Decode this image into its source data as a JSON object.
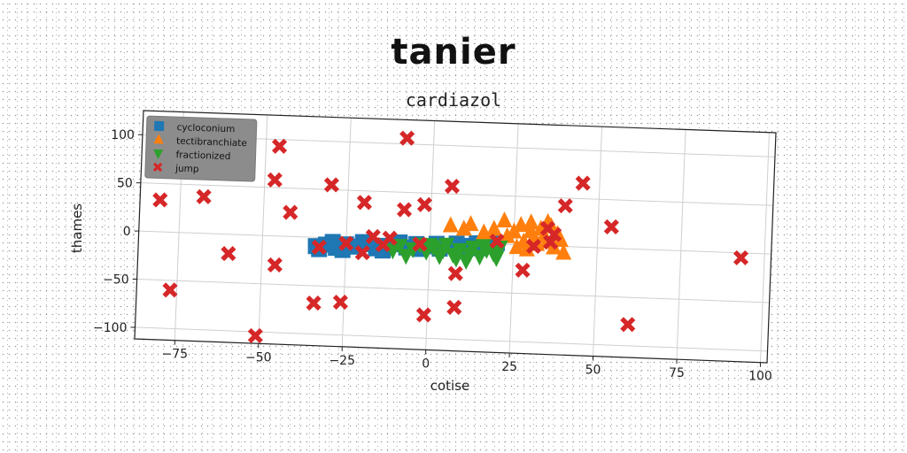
{
  "chart_data": {
    "type": "scatter",
    "title": "tanier",
    "subtitle": "cardiazol",
    "xlabel": "cotise",
    "ylabel": "thames",
    "xlim": [
      -87,
      102
    ],
    "ylim": [
      -112,
      125
    ],
    "xticks": [
      -75,
      -50,
      -25,
      0,
      25,
      50,
      75,
      100
    ],
    "yticks": [
      -100,
      -50,
      0,
      50,
      100
    ],
    "grid": true,
    "legend_position": "upper-left",
    "series": [
      {
        "name": "cycloconium",
        "marker": "square",
        "color": "#1f77b4",
        "points": [
          [
            -34,
            -9
          ],
          [
            -31,
            -7
          ],
          [
            -28,
            -10
          ],
          [
            -25,
            -6
          ],
          [
            -22,
            -8
          ],
          [
            -19,
            -5
          ],
          [
            -16,
            -9
          ],
          [
            -13,
            -6
          ],
          [
            -10,
            -4
          ],
          [
            -7,
            -7
          ],
          [
            -4,
            -3
          ],
          [
            -1,
            -5
          ],
          [
            2,
            -2
          ],
          [
            5,
            -4
          ],
          [
            8,
            -1
          ],
          [
            11,
            -3
          ],
          [
            14,
            0
          ],
          [
            17,
            -2
          ],
          [
            20,
            1
          ],
          [
            -33,
            -12
          ],
          [
            -29,
            -4
          ],
          [
            -26,
            -12
          ],
          [
            -20,
            -3
          ],
          [
            -14,
            -11
          ],
          [
            -9,
            -2
          ],
          [
            -3,
            -8
          ],
          [
            3,
            -7
          ],
          [
            9,
            -6
          ],
          [
            15,
            -5
          ]
        ]
      },
      {
        "name": "tectibranchiate",
        "marker": "triangle-up",
        "color": "#ff7f0e",
        "points": [
          [
            6,
            17
          ],
          [
            10,
            14
          ],
          [
            12,
            19
          ],
          [
            16,
            11
          ],
          [
            19,
            15
          ],
          [
            22,
            24
          ],
          [
            23,
            8
          ],
          [
            25,
            13
          ],
          [
            27,
            20
          ],
          [
            28,
            3
          ],
          [
            29,
            -5
          ],
          [
            30,
            14
          ],
          [
            31,
            8
          ],
          [
            32,
            1
          ],
          [
            33,
            17
          ],
          [
            34,
            10
          ],
          [
            35,
            4
          ],
          [
            36,
            20
          ],
          [
            37,
            -2
          ],
          [
            38,
            12
          ],
          [
            39,
            6
          ],
          [
            40,
            -7
          ],
          [
            26,
            -3
          ],
          [
            30,
            23
          ],
          [
            35,
            24
          ]
        ]
      },
      {
        "name": "fractionized",
        "marker": "triangle-down",
        "color": "#2ca02c",
        "points": [
          [
            -7,
            -15
          ],
          [
            -5,
            -8
          ],
          [
            -3,
            -3
          ],
          [
            -1,
            -10
          ],
          [
            1,
            -5
          ],
          [
            3,
            -14
          ],
          [
            5,
            -2
          ],
          [
            7,
            -12
          ],
          [
            9,
            -7
          ],
          [
            11,
            -18
          ],
          [
            13,
            -4
          ],
          [
            15,
            -13
          ],
          [
            17,
            -6
          ],
          [
            19,
            -9
          ],
          [
            21,
            -3
          ],
          [
            -9,
            -5
          ],
          [
            -11,
            -10
          ],
          [
            0,
            -3
          ],
          [
            4,
            -8
          ],
          [
            8,
            -16
          ],
          [
            12,
            -11
          ],
          [
            16,
            -2
          ],
          [
            20,
            -14
          ]
        ]
      },
      {
        "name": "jump",
        "marker": "x",
        "color": "#d62728",
        "points": [
          [
            -8,
            106
          ],
          [
            -46,
            93
          ],
          [
            -68,
            38
          ],
          [
            -30,
            55
          ],
          [
            -47,
            58
          ],
          [
            -42,
            25
          ],
          [
            -20,
            38
          ],
          [
            -8,
            32
          ],
          [
            -2,
            38
          ],
          [
            6,
            58
          ],
          [
            -81,
            33
          ],
          [
            -77,
            -60
          ],
          [
            -60,
            -20
          ],
          [
            -46,
            -30
          ],
          [
            -51,
            -104
          ],
          [
            -34,
            -68
          ],
          [
            -26,
            -66
          ],
          [
            -17,
            3
          ],
          [
            -12,
            2
          ],
          [
            -20,
            -14
          ],
          [
            -14,
            -5
          ],
          [
            -25,
            -5
          ],
          [
            -33,
            -10
          ],
          [
            8,
            -32
          ],
          [
            8,
            -67
          ],
          [
            -1,
            -76
          ],
          [
            28,
            -26
          ],
          [
            45,
            66
          ],
          [
            40,
            42
          ],
          [
            54,
            22
          ],
          [
            60,
            -78
          ],
          [
            93,
            -5
          ],
          [
            35,
            18
          ],
          [
            37,
            12
          ],
          [
            31,
            -1
          ],
          [
            36,
            4
          ],
          [
            20,
            3
          ],
          [
            -3,
            -3
          ]
        ]
      }
    ]
  }
}
